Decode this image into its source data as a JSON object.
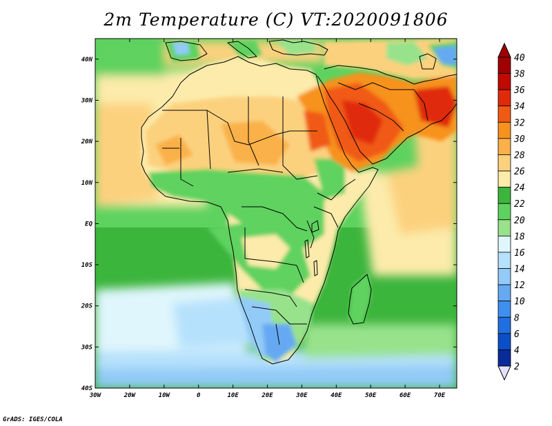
{
  "title": "2m Temperature (C) VT:2020091806",
  "credit": "GrADS: IGES/COLA",
  "map": {
    "lat_labels": [
      {
        "label": "40N",
        "lat": 40
      },
      {
        "label": "30N",
        "lat": 30
      },
      {
        "label": "20N",
        "lat": 20
      },
      {
        "label": "10N",
        "lat": 10
      },
      {
        "label": "EQ",
        "lat": 0
      },
      {
        "label": "10S",
        "lat": -10
      },
      {
        "label": "20S",
        "lat": -20
      },
      {
        "label": "30S",
        "lat": -30
      },
      {
        "label": "40S",
        "lat": -40
      }
    ],
    "lon_labels": [
      {
        "label": "30W",
        "lon": -30
      },
      {
        "label": "20W",
        "lon": -20
      },
      {
        "label": "10W",
        "lon": -10
      },
      {
        "label": "0",
        "lon": 0
      },
      {
        "label": "10E",
        "lon": 10
      },
      {
        "label": "20E",
        "lon": 20
      },
      {
        "label": "30E",
        "lon": 30
      },
      {
        "label": "40E",
        "lon": 40
      },
      {
        "label": "50E",
        "lon": 50
      },
      {
        "label": "60E",
        "lon": 60
      },
      {
        "label": "70E",
        "lon": 70
      }
    ]
  },
  "colorbar": {
    "levels": [
      {
        "label": "40",
        "color": "#a00000"
      },
      {
        "label": "38",
        "color": "#c00a00"
      },
      {
        "label": "36",
        "color": "#e02a0a"
      },
      {
        "label": "34",
        "color": "#f05a14"
      },
      {
        "label": "32",
        "color": "#f7921e"
      },
      {
        "label": "30",
        "color": "#fab14a"
      },
      {
        "label": "28",
        "color": "#fcd17e"
      },
      {
        "label": "26",
        "color": "#fcebaa"
      },
      {
        "label": "24",
        "color": "#3cb53c"
      },
      {
        "label": "22",
        "color": "#5ed25e"
      },
      {
        "label": "20",
        "color": "#98e28c"
      },
      {
        "label": "18",
        "color": "#dff6fc"
      },
      {
        "label": "16",
        "color": "#b6e1fc"
      },
      {
        "label": "14",
        "color": "#92cbf7"
      },
      {
        "label": "12",
        "color": "#66a9f2"
      },
      {
        "label": "10",
        "color": "#3f8ff0"
      },
      {
        "label": "8",
        "color": "#1f6fe0"
      },
      {
        "label": "6",
        "color": "#0a4fc8"
      },
      {
        "label": "4",
        "color": "#0a2a9a"
      },
      {
        "label": "2",
        "color": "#e6e0ff"
      }
    ],
    "top_color": "#a00000",
    "bottom_color": "#e6e0ff"
  }
}
